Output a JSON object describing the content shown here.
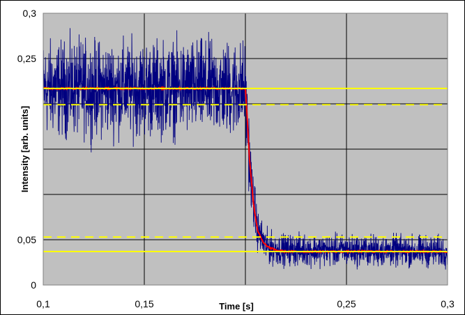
{
  "chart_data": {
    "type": "line",
    "title": "",
    "xlabel": "Time [s]",
    "ylabel": "Intensity [arb. units]",
    "xlim": [
      0.1,
      0.3
    ],
    "ylim": [
      0,
      0.3
    ],
    "x_ticks": [
      0.1,
      0.15,
      0.25,
      0.3
    ],
    "x_tick_labels": [
      "0,1",
      "0,15",
      "0,25",
      "0,3"
    ],
    "y_ticks": [
      0,
      0.05,
      0.25,
      0.3
    ],
    "y_tick_labels": [
      "0",
      "0,05",
      "0,25",
      "0,3"
    ],
    "x_grid": [
      0.1,
      0.15,
      0.2,
      0.25,
      0.3
    ],
    "y_grid": [
      0,
      0.05,
      0.1,
      0.15,
      0.2,
      0.25,
      0.3
    ],
    "grid": true,
    "legend": "none",
    "plot_background": "#c0c0c0",
    "series": [
      {
        "color": "#000080",
        "style": "noisy",
        "x": [
          0.1,
          0.2,
          0.2005,
          0.203,
          0.206,
          0.21,
          0.215,
          0.3
        ],
        "y": [
          0.217,
          0.217,
          0.19,
          0.11,
          0.06,
          0.043,
          0.039,
          0.037
        ],
        "band": [
          0.12,
          0.12,
          0.11,
          0.08,
          0.05,
          0.045,
          0.04,
          0.04
        ]
      },
      {
        "color": "#ff0000",
        "style": "smooth",
        "x": [
          0.1,
          0.2,
          0.2005,
          0.202,
          0.204,
          0.206,
          0.209,
          0.212,
          0.216,
          0.22,
          0.3
        ],
        "y": [
          0.217,
          0.217,
          0.2,
          0.14,
          0.09,
          0.06,
          0.046,
          0.041,
          0.038,
          0.037,
          0.037
        ]
      }
    ],
    "reference_lines": [
      {
        "y": 0.217,
        "color": "#ffff00",
        "style": "solid"
      },
      {
        "y": 0.199,
        "color": "#ffff00",
        "style": "dashed"
      },
      {
        "y": 0.053,
        "color": "#ffff00",
        "style": "dashed"
      },
      {
        "y": 0.037,
        "color": "#ffff00",
        "style": "solid"
      }
    ]
  }
}
